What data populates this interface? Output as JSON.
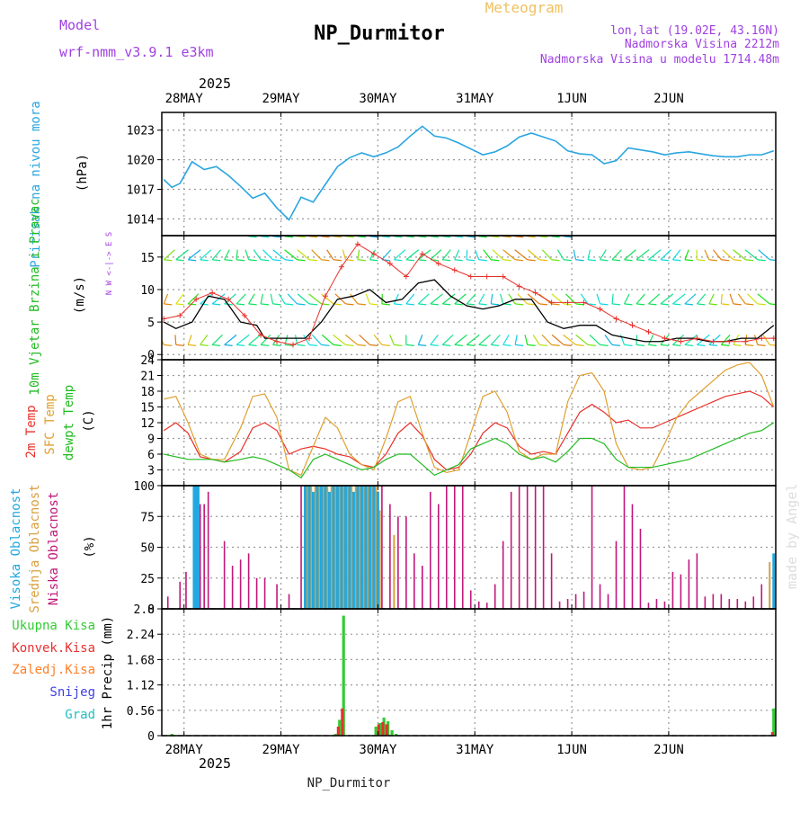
{
  "header": {
    "title": "NP_Durmitor",
    "subtitle": "Meteogram",
    "model_label": "Model",
    "model_name": "wrf-nmm_v3.9.1 e3km",
    "location": "lon,lat (19.02E, 43.16N)",
    "elevation": "Nadmorska Visina 2212m",
    "model_elevation": "Nadmorska Visina u modelu 1714.48m",
    "year_top": "2025",
    "year_bottom": "2025",
    "footer_name": "NP_Durmitor",
    "credit": "made by Angel"
  },
  "colors": {
    "pressure": "#2aa5e0",
    "wind_speed": "#000000",
    "gust": "#e8302a",
    "temp_2m": "#e8302a",
    "sfc_temp": "#e0a030",
    "dewpt": "#22bb22",
    "high_cloud": "#22a8e0",
    "mid_cloud": "#d8a040",
    "low_cloud": "#c0187a",
    "total_precip": "#33cc33",
    "conv_precip": "#e83030",
    "frz_precip": "#ff7f27",
    "snow": "#4040e0",
    "hail": "#20c0c0"
  },
  "chart_data": [
    {
      "type": "line",
      "title": "Pritisak na nivou mora",
      "ylabel": "(hPa)",
      "ylim": [
        1012.3,
        1024.8
      ],
      "yticks": [
        1014,
        1017,
        1020,
        1023
      ],
      "ytick_labels": [
        "1014",
        "1017",
        "1020",
        "1023"
      ],
      "x_dates": [
        "28MAY",
        "29MAY",
        "30MAY",
        "31MAY",
        "1JUN",
        "2JUN"
      ],
      "xlim_hours": [
        -5.5,
        146.5
      ],
      "series": [
        {
          "name": "Pressure",
          "x": [
            -5,
            -3,
            -1,
            2,
            5,
            8,
            11,
            14,
            17,
            20,
            23,
            26,
            29,
            32,
            35,
            38,
            41,
            44,
            47,
            50,
            53,
            56,
            59,
            62,
            65,
            68,
            71,
            74,
            77,
            80,
            83,
            86,
            89,
            92,
            95,
            98,
            101,
            104,
            107,
            110,
            113,
            116,
            119,
            122,
            125,
            128,
            131,
            134,
            137,
            140,
            143,
            146
          ],
          "values": [
            1018.0,
            1017.2,
            1017.6,
            1019.8,
            1019.0,
            1019.3,
            1018.4,
            1017.3,
            1016.1,
            1016.6,
            1015.1,
            1013.9,
            1016.2,
            1015.7,
            1017.5,
            1019.3,
            1020.2,
            1020.7,
            1020.3,
            1020.7,
            1021.3,
            1022.4,
            1023.4,
            1022.4,
            1022.2,
            1021.7,
            1021.1,
            1020.5,
            1020.8,
            1021.4,
            1022.3,
            1022.7,
            1022.3,
            1021.9,
            1020.9,
            1020.6,
            1020.5,
            1019.6,
            1019.9,
            1021.2,
            1021.0,
            1020.8,
            1020.5,
            1020.7,
            1020.8,
            1020.6,
            1020.4,
            1020.3,
            1020.3,
            1020.5,
            1020.5,
            1020.9
          ]
        }
      ]
    },
    {
      "type": "line",
      "title": "10m Vjetar Brzina i Pravac",
      "ylabel": "(m/s)",
      "compass_label": "N W <-|-> E S",
      "ylim": [
        -0.8,
        18.3
      ],
      "yticks": [
        0,
        5,
        10,
        15
      ],
      "ytick_labels": [
        "0",
        "5",
        "10",
        "15"
      ],
      "series": [
        {
          "name": "Wind speed",
          "x": [
            -5,
            -2,
            2,
            6,
            10,
            14,
            18,
            20,
            22,
            26,
            30,
            34,
            38,
            42,
            46,
            50,
            54,
            58,
            62,
            66,
            70,
            74,
            78,
            82,
            86,
            90,
            94,
            98,
            102,
            106,
            110,
            114,
            118,
            122,
            126,
            130,
            134,
            138,
            142,
            146
          ],
          "values": [
            5.0,
            4.0,
            5.0,
            9.0,
            8.5,
            5.0,
            4.5,
            2.5,
            2.5,
            2.5,
            2.5,
            5.0,
            8.5,
            9.0,
            10.0,
            8.0,
            8.5,
            11.0,
            11.5,
            9.0,
            7.5,
            7.0,
            7.5,
            8.5,
            8.5,
            5.0,
            4.0,
            4.5,
            4.5,
            3.0,
            2.5,
            2.0,
            2.0,
            2.5,
            2.5,
            2.0,
            2.0,
            2.5,
            2.5,
            4.5
          ]
        },
        {
          "name": "Gust",
          "x": [
            -5,
            -1,
            3,
            7,
            11,
            15,
            19,
            23,
            27,
            31,
            35,
            39,
            43,
            47,
            51,
            55,
            59,
            63,
            67,
            71,
            75,
            79,
            83,
            87,
            91,
            95,
            99,
            103,
            107,
            111,
            115,
            119,
            123,
            127,
            131,
            135,
            139,
            143,
            146
          ],
          "values": [
            5.5,
            6.0,
            8.5,
            9.5,
            8.5,
            6.0,
            3.0,
            2.0,
            1.5,
            2.5,
            9.0,
            13.5,
            17.0,
            15.5,
            14.0,
            12.0,
            15.5,
            14.0,
            13.0,
            12.0,
            12.0,
            12.0,
            10.5,
            9.5,
            8.0,
            8.0,
            8.0,
            7.0,
            5.5,
            4.5,
            3.5,
            2.5,
            2.0,
            2.5,
            2.0,
            2.0,
            2.0,
            2.5,
            2.5
          ]
        }
      ],
      "barbs": [
        {
          "name": "row-low",
          "level": 1.5,
          "x_start": -5,
          "x_end": 146,
          "step": 3
        },
        {
          "name": "row-mid",
          "level": 7.8,
          "x_start": -5,
          "x_end": 146,
          "step": 3
        },
        {
          "name": "row-high",
          "level": 14.6,
          "x_start": -5,
          "x_end": 146,
          "step": 3
        },
        {
          "name": "row-top",
          "level": 18.2,
          "x_start": 16,
          "x_end": 95,
          "step": 3
        }
      ]
    },
    {
      "type": "line",
      "titles": [
        "2m Temp",
        "SFC Temp",
        "dewpt Temp"
      ],
      "ylabel": "(C)",
      "ylim": [
        0,
        24
      ],
      "yticks": [
        3,
        6,
        9,
        12,
        15,
        18,
        21,
        24
      ],
      "ytick_labels": [
        "3",
        "6",
        "9",
        "12",
        "15",
        "18",
        "21",
        "24"
      ],
      "series": [
        {
          "name": "2m Temp",
          "x": [
            -5,
            -2,
            1,
            4,
            7,
            10,
            14,
            17,
            20,
            23,
            26,
            29,
            32,
            35,
            38,
            41,
            44,
            47,
            50,
            53,
            56,
            59,
            62,
            65,
            68,
            71,
            74,
            77,
            80,
            83,
            86,
            89,
            92,
            95,
            98,
            101,
            104,
            107,
            110,
            113,
            116,
            119,
            122,
            125,
            128,
            131,
            134,
            137,
            140,
            143,
            146
          ],
          "values": [
            10.5,
            12.0,
            10.0,
            5.5,
            5.0,
            4.5,
            6.5,
            11.0,
            12.0,
            10.5,
            6.0,
            7.0,
            7.5,
            7.0,
            6.0,
            5.5,
            4.0,
            3.5,
            6.0,
            10.0,
            12.0,
            9.5,
            5.0,
            3.0,
            3.5,
            6.0,
            10.0,
            12.0,
            11.0,
            7.5,
            6.0,
            6.5,
            6.0,
            10.0,
            14.0,
            15.5,
            14.0,
            12.0,
            12.5,
            11.0,
            11.0,
            12.0,
            13.0,
            14.0,
            15.0,
            16.0,
            17.0,
            17.5,
            18.0,
            17.0,
            15.0
          ]
        },
        {
          "name": "SFC Temp",
          "x": [
            -5,
            -2,
            1,
            4,
            7,
            10,
            14,
            17,
            20,
            23,
            26,
            29,
            32,
            35,
            38,
            41,
            44,
            47,
            50,
            53,
            56,
            59,
            62,
            65,
            68,
            71,
            74,
            77,
            80,
            83,
            86,
            89,
            92,
            95,
            98,
            101,
            104,
            107,
            110,
            113,
            116,
            119,
            122,
            125,
            128,
            131,
            134,
            137,
            140,
            143,
            146
          ],
          "values": [
            16.5,
            17.0,
            12.0,
            6.0,
            5.0,
            5.0,
            11.0,
            17.0,
            17.5,
            13.0,
            3.0,
            2.0,
            7.5,
            13.0,
            11.0,
            6.0,
            4.0,
            3.0,
            9.0,
            16.0,
            17.0,
            10.0,
            3.5,
            2.5,
            3.0,
            10.0,
            17.0,
            18.0,
            14.0,
            6.5,
            5.0,
            6.0,
            6.0,
            16.0,
            21.0,
            21.5,
            18.0,
            8.0,
            3.5,
            3.0,
            3.5,
            8.0,
            13.0,
            16.0,
            18.0,
            20.0,
            22.0,
            23.0,
            23.5,
            21.0,
            15.0
          ]
        },
        {
          "name": "dewpt Temp",
          "x": [
            -5,
            -2,
            1,
            4,
            7,
            10,
            14,
            17,
            20,
            23,
            26,
            29,
            32,
            35,
            38,
            41,
            44,
            47,
            50,
            53,
            56,
            59,
            62,
            65,
            68,
            71,
            74,
            77,
            80,
            83,
            86,
            89,
            92,
            95,
            98,
            101,
            104,
            107,
            110,
            113,
            116,
            119,
            122,
            125,
            128,
            131,
            134,
            137,
            140,
            143,
            146
          ],
          "values": [
            6.0,
            5.5,
            5.0,
            5.0,
            5.0,
            4.5,
            5.0,
            5.5,
            5.0,
            4.0,
            3.0,
            1.5,
            5.0,
            6.0,
            5.0,
            4.0,
            3.0,
            3.5,
            5.0,
            6.0,
            6.0,
            4.0,
            2.0,
            3.0,
            4.0,
            7.0,
            8.0,
            9.0,
            8.0,
            6.0,
            5.0,
            5.5,
            4.5,
            6.5,
            9.0,
            9.0,
            8.0,
            5.0,
            3.5,
            3.5,
            3.5,
            4.0,
            4.5,
            5.0,
            6.0,
            7.0,
            8.0,
            9.0,
            10.0,
            10.5,
            12.0
          ]
        }
      ]
    },
    {
      "type": "bar",
      "titles": [
        "Visoka Oblacnost",
        "Srednja Oblacnost",
        "Niska Oblacnost"
      ],
      "ylabel": "(%)",
      "ylim": [
        0,
        100
      ],
      "yticks": [
        0,
        25,
        50,
        75,
        100
      ],
      "ytick_labels": [
        "0",
        "25",
        "50",
        "75",
        "100"
      ],
      "series": [
        {
          "name": "Visoka",
          "x": [
            2.5,
            3.0,
            3.5,
            30,
            31,
            32,
            33,
            34,
            35,
            36,
            37,
            38,
            39,
            40,
            41,
            42,
            43,
            44,
            45,
            46,
            47,
            48,
            146
          ],
          "values": [
            100,
            100,
            100,
            100,
            100,
            95,
            100,
            100,
            100,
            95,
            100,
            100,
            100,
            100,
            100,
            95,
            100,
            100,
            100,
            100,
            100,
            95,
            45
          ]
        },
        {
          "name": "Srednja",
          "x": [
            3.2,
            30.5,
            31.5,
            32.5,
            33.5,
            34.5,
            35.5,
            36.5,
            37.5,
            38.5,
            39.5,
            40.5,
            41.5,
            42.5,
            43.5,
            44.5,
            45.5,
            46.5,
            47.5,
            48.5,
            52,
            145
          ],
          "values": [
            50,
            100,
            100,
            100,
            100,
            100,
            100,
            100,
            100,
            100,
            100,
            100,
            100,
            100,
            100,
            100,
            100,
            100,
            100,
            80,
            60,
            38
          ]
        },
        {
          "name": "Niska",
          "x": [
            -4,
            -1,
            0.5,
            4,
            5,
            6,
            7,
            10,
            12,
            14,
            16,
            18,
            20,
            23,
            26,
            29,
            31,
            33,
            35,
            37,
            39,
            41,
            43,
            45,
            47,
            49,
            51,
            53,
            55,
            57,
            59,
            61,
            63,
            65,
            67,
            69,
            71,
            73,
            75,
            77,
            79,
            81,
            83,
            85,
            87,
            89,
            91,
            93,
            95,
            97,
            99,
            101,
            103,
            105,
            107,
            109,
            111,
            113,
            115,
            117,
            119,
            121,
            123,
            125,
            127,
            129,
            131,
            133,
            135,
            137,
            139,
            141,
            143,
            145,
            146
          ],
          "values": [
            10,
            22,
            30,
            85,
            85,
            95,
            0,
            55,
            35,
            40,
            45,
            25,
            25,
            20,
            12,
            100,
            100,
            100,
            100,
            100,
            100,
            95,
            100,
            100,
            100,
            100,
            85,
            75,
            75,
            45,
            35,
            95,
            85,
            100,
            100,
            100,
            15,
            6,
            5,
            20,
            55,
            95,
            100,
            100,
            100,
            100,
            45,
            6,
            8,
            12,
            14,
            100,
            20,
            12,
            55,
            100,
            85,
            65,
            5,
            8,
            6,
            30,
            28,
            40,
            45,
            10,
            12,
            12,
            8,
            8,
            6,
            10,
            20,
            25,
            35
          ]
        }
      ]
    },
    {
      "type": "bar",
      "titles": [
        "Ukupna Kisa",
        "Konvek.Kisa",
        "Zaledj.Kisa",
        "Snijeg",
        "Grad"
      ],
      "ylabel": "1hr Precip (mm)",
      "ylim": [
        0,
        2.8
      ],
      "yticks": [
        0,
        0.56,
        1.12,
        1.68,
        2.24,
        2.8
      ],
      "ytick_labels": [
        "0",
        "0.56",
        "1.12",
        "1.68",
        "2.24",
        "2.8"
      ],
      "series": [
        {
          "name": "Ukupna Kisa",
          "x": [
            -3,
            37.5,
            38.5,
            39.5,
            47.5,
            48.5,
            49.5,
            50.5,
            51.5,
            52.5,
            146
          ],
          "values": [
            0.04,
            0.04,
            0.35,
            2.65,
            0.2,
            0.28,
            0.4,
            0.32,
            0.12,
            0.04,
            0.6
          ]
        },
        {
          "name": "Konvek.Kisa",
          "x": [
            38.2,
            39.2,
            48.2,
            49.2,
            50.2,
            145.7
          ],
          "values": [
            0.2,
            0.6,
            0.25,
            0.3,
            0.25,
            0.08
          ]
        },
        {
          "name": "Zaledj.Kisa",
          "x": [],
          "values": []
        },
        {
          "name": "Snijeg",
          "x": [],
          "values": []
        },
        {
          "name": "Grad",
          "x": [],
          "values": []
        }
      ]
    }
  ]
}
